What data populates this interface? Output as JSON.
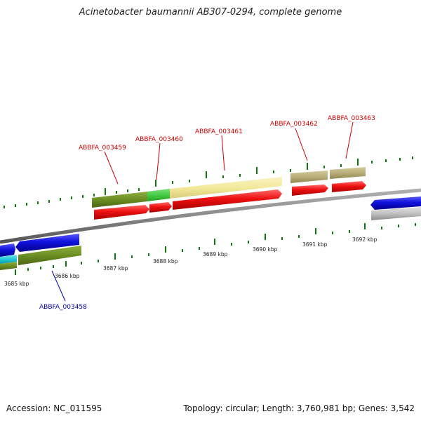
{
  "title": "Acinetobacter baumannii AB307-0294, complete genome",
  "footer": {
    "accession": "Accession: NC_011595",
    "summary": "Topology: circular; Length: 3,760,981 bp; Genes: 3,542"
  },
  "scale_labels": [
    "3685 kbp",
    "3686 kbp",
    "3687 kbp",
    "3688 kbp",
    "3689 kbp",
    "3690 kbp",
    "3691 kbp",
    "3692 kbp"
  ],
  "gene_labels": {
    "g3458": "ABBFA_003458",
    "g3459": "ABBFA_003459",
    "g3460": "ABBFA_003460",
    "g3461": "ABBFA_003461",
    "g3462": "ABBFA_003462",
    "g3463": "ABBFA_003463"
  },
  "colors": {
    "label_red": "#cc0000",
    "label_blue": "#0000aa",
    "forward_cds": "#ee1111",
    "reverse_cds": "#1111dd",
    "olive": "#6b8e23",
    "light_green": "#44cc44",
    "pale_yellow": "#f3e99a",
    "khaki": "#b9ae7a",
    "cyan": "#22c9d9",
    "backbone": "#8a8a8a",
    "tick_green": "#0b7a0b"
  }
}
